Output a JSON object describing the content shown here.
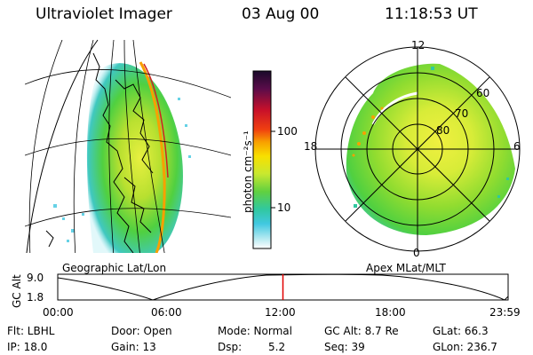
{
  "header": {
    "instrument": "Ultraviolet Imager",
    "date": "03 Aug 00",
    "time": "11:18:53 UT"
  },
  "panels": {
    "left_caption": "Geographic Lat/Lon",
    "right_caption": "Apex MLat/MLT"
  },
  "colorbar": {
    "unit": "photon cm⁻²s⁻¹",
    "ticks": [
      "100",
      "10"
    ],
    "colors": [
      "#2a0a3a",
      "#5a0c4a",
      "#8a0f2a",
      "#c8102a",
      "#f04010",
      "#f8a000",
      "#f8e000",
      "#e8f040",
      "#a8e020",
      "#50d040",
      "#30c8a0",
      "#40c8e0",
      "#a0e8f0",
      "#ffffff"
    ]
  },
  "polar_plot": {
    "mlt_labels": [
      "12",
      "18",
      "6",
      "0"
    ],
    "mlat_labels": [
      "60",
      "70",
      "80"
    ]
  },
  "altitude_plot": {
    "ylabel": "GC Alt",
    "yticks": [
      "9.0",
      "1.8"
    ],
    "xticks": [
      "00:00",
      "06:00",
      "12:00",
      "18:00",
      "23:59"
    ],
    "current_time_fraction": 0.5
  },
  "info": {
    "flt": "Flt: LBHL",
    "ip": "IP: 18.0",
    "door": "Door: Open",
    "gain": "Gain: 13",
    "mode": "Mode: Normal",
    "dsp_label": "Dsp:",
    "dsp_value": "5.2",
    "gc_alt": "GC Alt: 8.7 Re",
    "seq": "Seq: 39",
    "glat": "GLat: 66.3",
    "glon": "GLon: 236.7"
  }
}
